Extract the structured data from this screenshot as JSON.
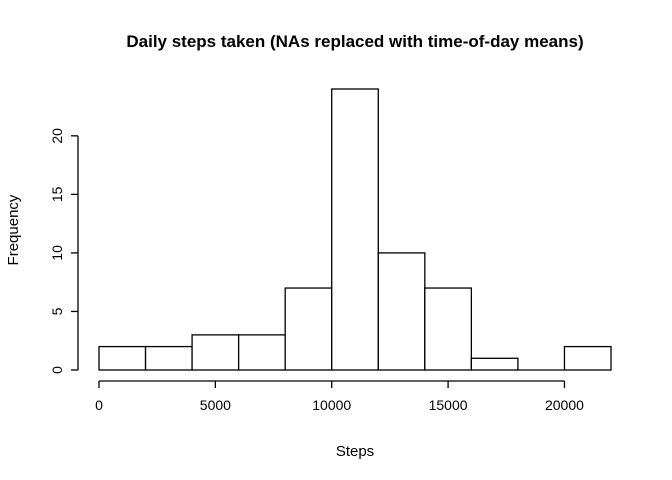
{
  "chart_data": {
    "type": "bar",
    "subtype": "histogram",
    "title": "Daily steps taken (NAs replaced with time-of-day means)",
    "xlabel": "Steps",
    "ylabel": "Frequency",
    "bins": [
      {
        "from": 0,
        "to": 2000,
        "count": 2
      },
      {
        "from": 2000,
        "to": 4000,
        "count": 2
      },
      {
        "from": 4000,
        "to": 6000,
        "count": 3
      },
      {
        "from": 6000,
        "to": 8000,
        "count": 3
      },
      {
        "from": 8000,
        "to": 10000,
        "count": 7
      },
      {
        "from": 10000,
        "to": 12000,
        "count": 24
      },
      {
        "from": 12000,
        "to": 14000,
        "count": 10
      },
      {
        "from": 14000,
        "to": 16000,
        "count": 7
      },
      {
        "from": 16000,
        "to": 18000,
        "count": 1
      },
      {
        "from": 18000,
        "to": 20000,
        "count": 0
      },
      {
        "from": 20000,
        "to": 22000,
        "count": 2
      }
    ],
    "xlim": [
      0,
      22000
    ],
    "ylim": [
      0,
      24
    ],
    "x_ticks": [
      "0",
      "5000",
      "10000",
      "15000",
      "20000"
    ],
    "y_ticks": [
      "0",
      "5",
      "10",
      "15",
      "20"
    ],
    "bar_fill": "#ffffff",
    "bar_stroke": "#000000",
    "grid": false,
    "legend": "none"
  }
}
